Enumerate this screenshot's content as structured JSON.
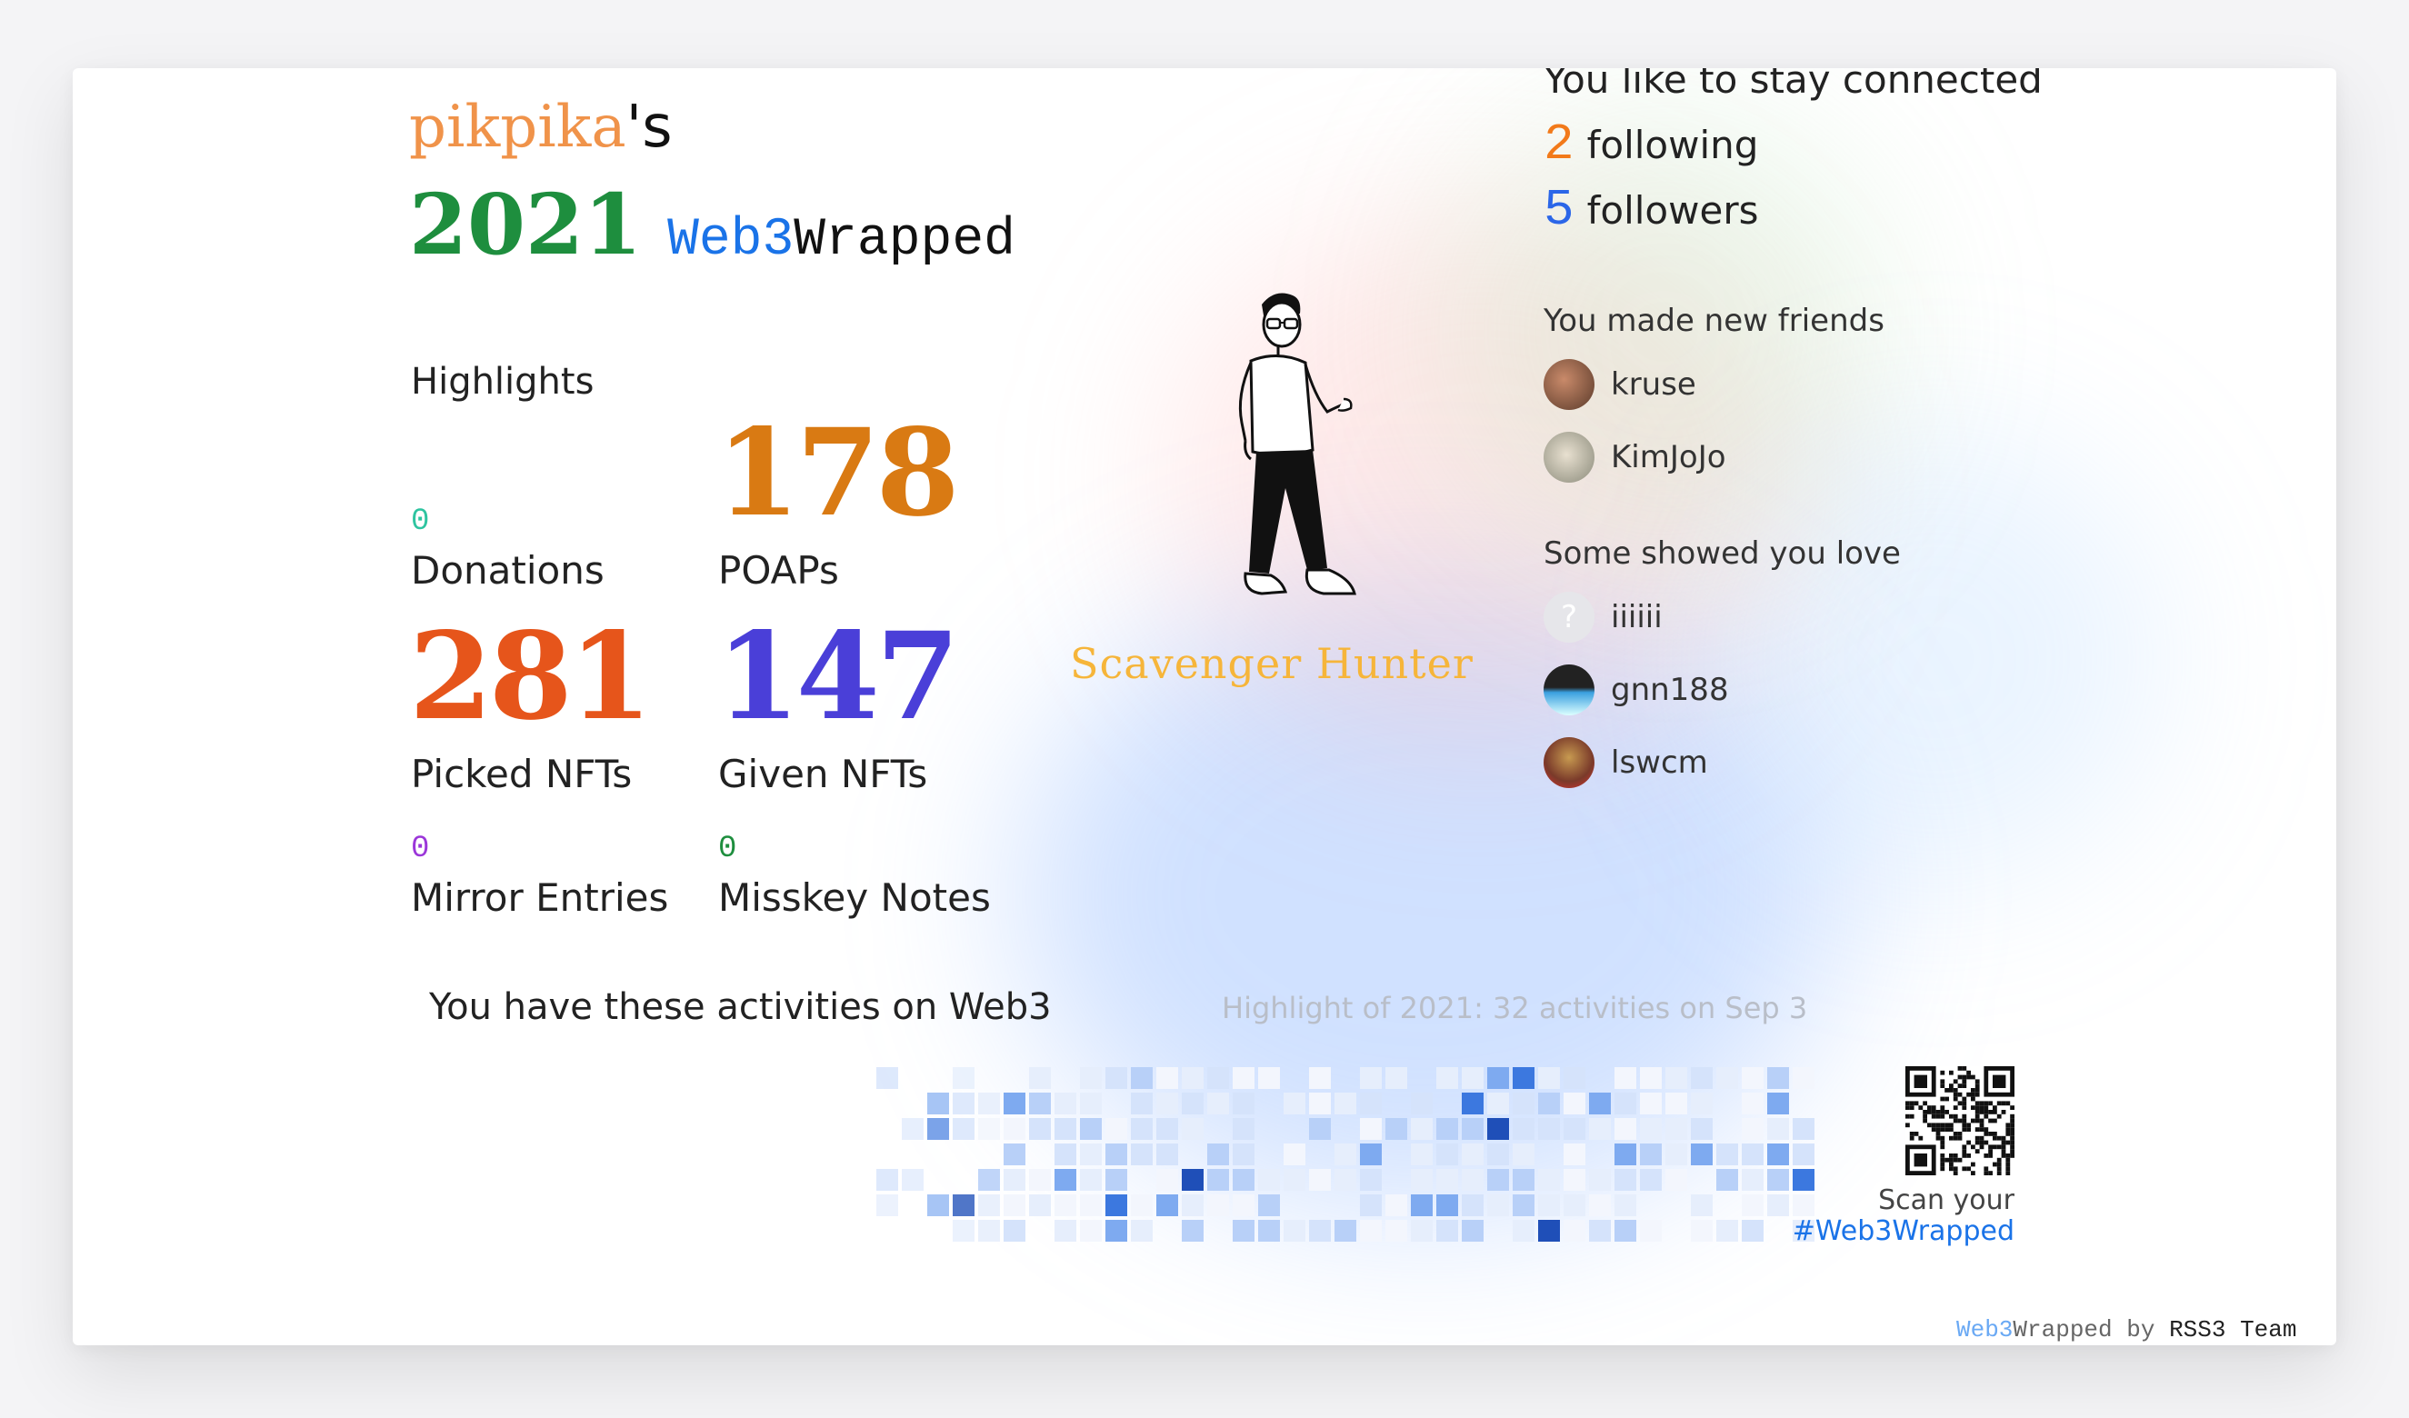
{
  "header": {
    "username": "pikpika",
    "possessive": "'s",
    "year": "2021",
    "brand_web3": "Web3",
    "brand_wrapped": "Wrapped"
  },
  "highlights": {
    "title": "Highlights",
    "donations": {
      "value": "0",
      "label": "Donations"
    },
    "poaps": {
      "value": "178",
      "label": "POAPs"
    },
    "picked_nfts": {
      "value": "281",
      "label": "Picked NFTs"
    },
    "given_nfts": {
      "value": "147",
      "label": "Given NFTs"
    },
    "mirror_entries": {
      "value": "0",
      "label": "Mirror Entries"
    },
    "misskey_notes": {
      "value": "0",
      "label": "Misskey Notes"
    }
  },
  "persona": {
    "title": "Scavenger Hunter"
  },
  "connections": {
    "title": "You like to stay connected",
    "following_count": "2",
    "following_label": "following",
    "followers_count": "5",
    "followers_label": "followers"
  },
  "new_friends": {
    "title": "You made new friends",
    "items": [
      {
        "name": "kruse"
      },
      {
        "name": "KimJoJo"
      }
    ]
  },
  "love": {
    "title": "Some showed you love",
    "items": [
      {
        "name": "iiiiii"
      },
      {
        "name": "gnn188"
      },
      {
        "name": "lswcm"
      }
    ]
  },
  "activities": {
    "title": "You have these activities on Web3",
    "highlight": "Highlight of 2021: 32 activities on Sep 3"
  },
  "share": {
    "scan_text": "Scan your",
    "hashtag": "#Web3Wrapped"
  },
  "credit": {
    "web3": "Web3",
    "wrapped_by": "Wrapped by",
    "team": "RSS3 Team"
  },
  "colors": {
    "username": "#f0934a",
    "year": "#1e8e3e",
    "donations": "#2ec4a0",
    "poaps": "#d97a13",
    "picked": "#e6551b",
    "given": "#4a3fd8",
    "mirror": "#9b36d9",
    "misskey": "#1e8e3e",
    "persona": "#f6b53a",
    "following": "#f27a1a",
    "followers": "#2b66e8"
  }
}
